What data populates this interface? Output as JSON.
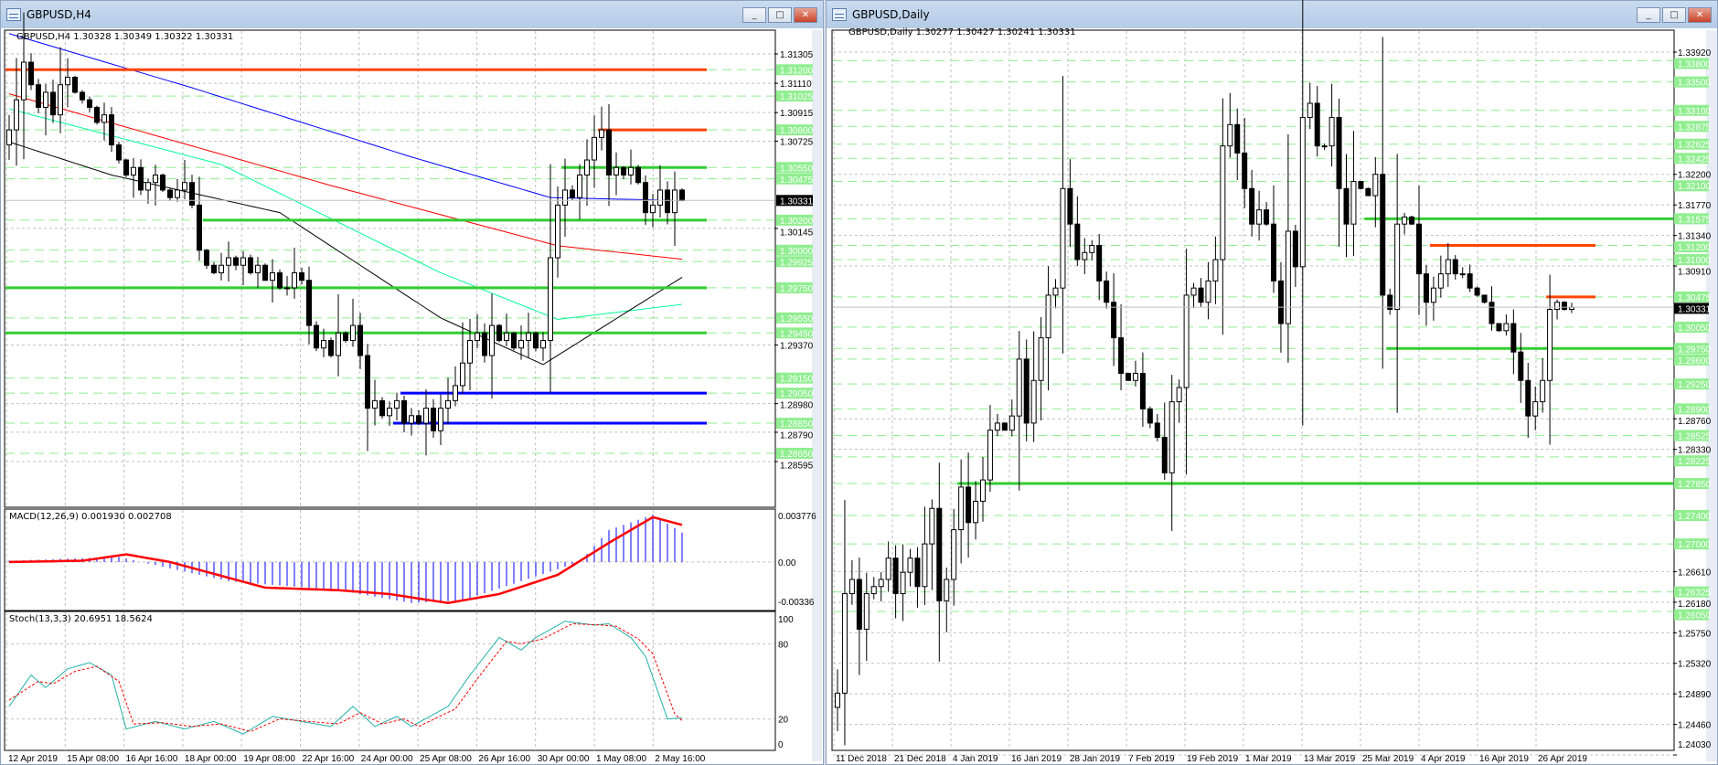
{
  "left": {
    "window_title": "GBPUSD,H4",
    "chart_header": "GBPUSD,H4  1.30328 1.30349 1.30322 1.30331",
    "macd_header": "MACD(12,26,9) 0.001930 0.002708",
    "stoch_header": "Stoch(13,3,3) 20.6951 18.5624",
    "current_price": "1.30331",
    "price_axis_plain": [
      "1.31305",
      "1.31110",
      "1.30915",
      "1.30725",
      "1.30145",
      "1.29370",
      "1.28980",
      "1.28790",
      "1.28595"
    ],
    "price_axis_levels": [
      "1.31200",
      "1.31025",
      "1.30800",
      "1.30550",
      "1.30475",
      "1.30200",
      "1.30000",
      "1.29925",
      "1.29750",
      "1.29550",
      "1.29450",
      "1.29150",
      "1.29050",
      "1.28850",
      "1.28650"
    ],
    "macd_axis": [
      "0.003776",
      "0.00",
      "-0.00336"
    ],
    "stoch_axis": [
      "100",
      "80",
      "20",
      "0"
    ],
    "time_axis": [
      "12 Apr 2019",
      "15 Apr 08:00",
      "16 Apr 16:00",
      "18 Apr 00:00",
      "19 Apr 08:00",
      "22 Apr 16:00",
      "24 Apr 00:00",
      "25 Apr 08:00",
      "26 Apr 16:00",
      "30 Apr 00:00",
      "1 May 08:00",
      "2 May 16:00"
    ]
  },
  "right": {
    "window_title": "GBPUSD,Daily",
    "chart_header": "GBPUSD,Daily  1.30277 1.30427 1.30241 1.30331",
    "current_price": "1.30331",
    "price_axis_plain": [
      "1.33920",
      "1.32200",
      "1.31770",
      "1.31340",
      "1.30910",
      "1.28760",
      "1.28330",
      "1.26610",
      "1.26180",
      "1.25750",
      "1.25320",
      "1.24890",
      "1.24460",
      "1.24030"
    ],
    "price_axis_levels": [
      "1.33800",
      "1.33500",
      "1.33100",
      "1.32875",
      "1.32625",
      "1.32425",
      "1.32100",
      "1.31575",
      "1.31200",
      "1.31000",
      "1.30475",
      "1.30050",
      "1.29750",
      "1.29600",
      "1.29250",
      "1.28900",
      "1.28525",
      "1.28225",
      "1.27850",
      "1.27400",
      "1.27000",
      "1.26325",
      "1.26050"
    ],
    "time_axis": [
      "11 Dec 2018",
      "21 Dec 2018",
      "4 Jan 2019",
      "16 Jan 2019",
      "28 Jan 2019",
      "7 Feb 2019",
      "19 Feb 2019",
      "1 Mar 2019",
      "13 Mar 2019",
      "25 Mar 2019",
      "4 Apr 2019",
      "16 Apr 2019",
      "26 Apr 2019"
    ]
  },
  "window_buttons": {
    "minimize": "_",
    "restore": "□",
    "close": "✕"
  },
  "colors": {
    "bull_body": "#ffffff",
    "bear_body": "#000000",
    "level_green": "#32cd32",
    "level_label_bg": "#90ee90",
    "level_orange": "#ff4500",
    "level_blue": "#0000ff",
    "ma_blue": "#0000ff",
    "ma_red": "#ff0000",
    "ma_teal": "#00fa9a",
    "ma_black": "#000000",
    "macd_hist": "#0000ff",
    "macd_signal": "#ff0000",
    "stoch_main": "#20b2aa",
    "stoch_signal": "#ff0000"
  },
  "chart_data": [
    {
      "type": "candlestick",
      "title": "GBPUSD,H4",
      "closes": [
        1.308,
        1.31,
        1.3125,
        1.311,
        1.3095,
        1.3105,
        1.309,
        1.311,
        1.3115,
        1.3105,
        1.31,
        1.3095,
        1.3085,
        1.309,
        1.307,
        1.306,
        1.305,
        1.3055,
        1.304,
        1.3045,
        1.305,
        1.304,
        1.3035,
        1.304,
        1.3045,
        1.303,
        1.3,
        1.299,
        1.2985,
        1.299,
        1.2995,
        1.299,
        1.2995,
        1.2985,
        1.299,
        1.298,
        1.2985,
        1.2975,
        1.2975,
        1.2985,
        1.298,
        1.295,
        1.2935,
        1.294,
        1.293,
        1.2945,
        1.294,
        1.295,
        1.293,
        1.2895,
        1.29,
        1.289,
        1.2895,
        1.29,
        1.2885,
        1.289,
        1.2885,
        1.2895,
        1.288,
        1.2895,
        1.29,
        1.291,
        1.2925,
        1.294,
        1.2945,
        1.293,
        1.295,
        1.294,
        1.2945,
        1.2935,
        1.294,
        1.2945,
        1.2935,
        1.294,
        1.2995,
        1.303,
        1.304,
        1.3035,
        1.305,
        1.306,
        1.3075,
        1.308,
        1.305,
        1.3055,
        1.305,
        1.3055,
        1.3045,
        1.3025,
        1.303,
        1.304,
        1.3025,
        1.304,
        1.3033
      ],
      "ylim": [
        1.28595,
        1.31305
      ],
      "moving_averages": [
        {
          "color": "#0000ff",
          "points": [
            [
              0,
              1.3144
            ],
            [
              25,
              1.3108
            ],
            [
              55,
              1.3062
            ],
            [
              74,
              1.3035
            ],
            [
              92,
              1.3033
            ]
          ]
        },
        {
          "color": "#ff0000",
          "points": [
            [
              0,
              1.3104
            ],
            [
              44,
              1.3043
            ],
            [
              75,
              1.3003
            ],
            [
              92,
              1.2994
            ]
          ]
        },
        {
          "color": "#00fa9a",
          "points": [
            [
              0,
              1.3094
            ],
            [
              29,
              1.3057
            ],
            [
              59,
              1.2985
            ],
            [
              75,
              1.2954
            ],
            [
              92,
              1.2964
            ]
          ]
        },
        {
          "color": "#000000",
          "points": [
            [
              0,
              1.3072
            ],
            [
              14,
              1.305
            ],
            [
              37,
              1.3025
            ],
            [
              59,
              1.2955
            ],
            [
              73,
              1.2924
            ],
            [
              92,
              1.2982
            ]
          ]
        }
      ],
      "levels": [
        {
          "price": 1.312,
          "color": "#ff4500",
          "from_bar": 0
        },
        {
          "price": 1.308,
          "color": "#ff4500",
          "from_bar": 81
        },
        {
          "price": 1.3055,
          "color": "#32cd32",
          "from_bar": 76
        },
        {
          "price": 1.302,
          "color": "#32cd32",
          "from_bar": 27
        },
        {
          "price": 1.2975,
          "color": "#32cd32",
          "from_bar": 0
        },
        {
          "price": 1.2945,
          "color": "#32cd32",
          "from_bar": 0
        },
        {
          "price": 1.2905,
          "color": "#0000ff",
          "from_bar": 54
        },
        {
          "price": 1.2885,
          "color": "#0000ff",
          "from_bar": 53
        }
      ],
      "macd": {
        "ylim": [
          -0.00336,
          0.003776
        ],
        "histogram": [
          [
            0,
            0.0001
          ],
          [
            10,
            0.0003
          ],
          [
            15,
            0.0004
          ],
          [
            18,
            0
          ],
          [
            30,
            -0.0015
          ],
          [
            45,
            -0.0022
          ],
          [
            55,
            -0.0032
          ],
          [
            62,
            -0.003
          ],
          [
            70,
            -0.0015
          ],
          [
            78,
            0
          ],
          [
            82,
            0.0025
          ],
          [
            88,
            0.0037
          ],
          [
            92,
            0.0023
          ]
        ],
        "signal": [
          [
            0,
            0
          ],
          [
            10,
            0.0001
          ],
          [
            16,
            0.0006
          ],
          [
            22,
            0
          ],
          [
            35,
            -0.002
          ],
          [
            45,
            -0.0022
          ],
          [
            52,
            -0.0025
          ],
          [
            60,
            -0.0032
          ],
          [
            67,
            -0.0025
          ],
          [
            75,
            -0.001
          ],
          [
            82,
            0.0015
          ],
          [
            88,
            0.0035
          ],
          [
            92,
            0.0029
          ]
        ]
      },
      "stochastic": {
        "ylim": [
          0,
          100
        ],
        "main": [
          [
            0,
            30
          ],
          [
            3,
            55
          ],
          [
            5,
            45
          ],
          [
            8,
            60
          ],
          [
            11,
            65
          ],
          [
            14,
            55
          ],
          [
            16,
            12
          ],
          [
            20,
            18
          ],
          [
            24,
            12
          ],
          [
            28,
            18
          ],
          [
            32,
            8
          ],
          [
            36,
            22
          ],
          [
            40,
            18
          ],
          [
            44,
            14
          ],
          [
            47,
            30
          ],
          [
            50,
            14
          ],
          [
            53,
            22
          ],
          [
            55,
            14
          ],
          [
            60,
            30
          ],
          [
            63,
            55
          ],
          [
            67,
            85
          ],
          [
            70,
            75
          ],
          [
            72,
            85
          ],
          [
            76,
            98
          ],
          [
            80,
            95
          ],
          [
            82,
            96
          ],
          [
            85,
            85
          ],
          [
            87,
            70
          ],
          [
            90,
            20
          ],
          [
            92,
            20.7
          ]
        ],
        "signal": [
          [
            0,
            35
          ],
          [
            4,
            50
          ],
          [
            6,
            48
          ],
          [
            9,
            58
          ],
          [
            12,
            62
          ],
          [
            15,
            50
          ],
          [
            17,
            16
          ],
          [
            21,
            17
          ],
          [
            25,
            14
          ],
          [
            29,
            16
          ],
          [
            33,
            10
          ],
          [
            37,
            20
          ],
          [
            41,
            18
          ],
          [
            45,
            16
          ],
          [
            48,
            25
          ],
          [
            51,
            16
          ],
          [
            54,
            20
          ],
          [
            56,
            14
          ],
          [
            61,
            28
          ],
          [
            64,
            52
          ],
          [
            68,
            82
          ],
          [
            70,
            80
          ],
          [
            73,
            84
          ],
          [
            77,
            96
          ],
          [
            81,
            95
          ],
          [
            83,
            94
          ],
          [
            86,
            84
          ],
          [
            88,
            72
          ],
          [
            91,
            24
          ],
          [
            92,
            18.6
          ]
        ]
      }
    },
    {
      "type": "candlestick",
      "title": "GBPUSD,Daily",
      "closes": [
        1.249,
        1.263,
        1.265,
        1.258,
        1.263,
        1.264,
        1.265,
        1.268,
        1.263,
        1.266,
        1.268,
        1.264,
        1.27,
        1.275,
        1.262,
        1.265,
        1.272,
        1.278,
        1.273,
        1.276,
        1.279,
        1.286,
        1.287,
        1.286,
        1.288,
        1.296,
        1.287,
        1.293,
        1.299,
        1.305,
        1.306,
        1.32,
        1.315,
        1.31,
        1.311,
        1.312,
        1.307,
        1.304,
        1.299,
        1.294,
        1.293,
        1.294,
        1.289,
        1.287,
        1.285,
        1.28,
        1.29,
        1.292,
        1.305,
        1.306,
        1.304,
        1.307,
        1.31,
        1.326,
        1.329,
        1.325,
        1.32,
        1.315,
        1.317,
        1.315,
        1.307,
        1.301,
        1.314,
        1.309,
        1.33,
        1.332,
        1.326,
        1.326,
        1.33,
        1.32,
        1.315,
        1.321,
        1.32,
        1.319,
        1.322,
        1.305,
        1.303,
        1.315,
        1.316,
        1.315,
        1.308,
        1.304,
        1.306,
        1.308,
        1.31,
        1.308,
        1.308,
        1.306,
        1.305,
        1.304,
        1.301,
        1.3,
        1.301,
        1.297,
        1.293,
        1.288,
        1.29,
        1.293,
        1.303,
        1.304,
        1.303,
        1.3033
      ],
      "ylim": [
        1.2403,
        1.3392
      ],
      "levels": [
        {
          "price": 1.31575,
          "color": "#32cd32",
          "from_bar": 73
        },
        {
          "price": 1.312,
          "color": "#ff4500",
          "from_bar": 82
        },
        {
          "price": 1.30475,
          "color": "#ff4500",
          "from_bar": 98
        },
        {
          "price": 1.2975,
          "color": "#32cd32",
          "from_bar": 76
        },
        {
          "price": 1.2785,
          "color": "#32cd32",
          "from_bar": 17
        }
      ]
    }
  ]
}
